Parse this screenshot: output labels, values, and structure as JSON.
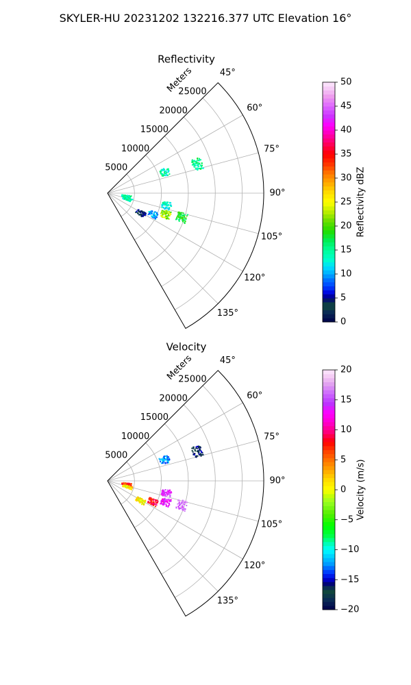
{
  "suptitle": "SKYLER-HU  20231202  132216.377 UTC Elevation 16°",
  "chart_data": [
    {
      "type": "polar-sector",
      "title": "Reflectivity",
      "range_label": "Meters",
      "range_ticks": [
        "5000",
        "10000",
        "15000",
        "20000",
        "25000"
      ],
      "range_max": 29000,
      "azimuth_range_deg": [
        45,
        150
      ],
      "azimuth_ticks": [
        "45°",
        "60°",
        "75°",
        "90°",
        "105°",
        "120°",
        "135°"
      ],
      "grid": true,
      "colorbar": {
        "label": "Reflectivity dBZ",
        "vmin": 0,
        "vmax": 50,
        "ticks": [
          "0",
          "5",
          "10",
          "15",
          "20",
          "25",
          "30",
          "35",
          "40",
          "45",
          "50"
        ]
      },
      "echoes": [
        {
          "range_m": 3600,
          "azimuth_deg": 100,
          "value": 15
        },
        {
          "range_m": 3900,
          "azimuth_deg": 107,
          "value": 14
        },
        {
          "range_m": 7200,
          "azimuth_deg": 121,
          "value": 4
        },
        {
          "range_m": 9300,
          "azimuth_deg": 115,
          "value": 10
        },
        {
          "range_m": 11500,
          "azimuth_deg": 110,
          "value": 22
        },
        {
          "range_m": 11200,
          "azimuth_deg": 102,
          "value": 13
        },
        {
          "range_m": 14500,
          "azimuth_deg": 108,
          "value": 18
        },
        {
          "range_m": 11300,
          "azimuth_deg": 70,
          "value": 14
        },
        {
          "range_m": 17500,
          "azimuth_deg": 72,
          "value": 15
        }
      ]
    },
    {
      "type": "polar-sector",
      "title": "Velocity",
      "range_label": "Meters",
      "range_ticks": [
        "5000",
        "10000",
        "15000",
        "20000",
        "25000"
      ],
      "range_max": 29000,
      "azimuth_range_deg": [
        45,
        150
      ],
      "azimuth_ticks": [
        "45°",
        "60°",
        "75°",
        "90°",
        "105°",
        "120°",
        "135°"
      ],
      "grid": true,
      "colorbar": {
        "label": "Velocity (m/s)",
        "vmin": -20,
        "vmax": 20,
        "ticks": [
          "−20",
          "−15",
          "−10",
          "−5",
          "0",
          "5",
          "10",
          "15",
          "20"
        ]
      },
      "echoes": [
        {
          "range_m": 3600,
          "azimuth_deg": 100,
          "value": 7
        },
        {
          "range_m": 3900,
          "azimuth_deg": 107,
          "value": 1
        },
        {
          "range_m": 7200,
          "azimuth_deg": 121,
          "value": 1
        },
        {
          "range_m": 9300,
          "azimuth_deg": 115,
          "value": 8
        },
        {
          "range_m": 11500,
          "azimuth_deg": 110,
          "value": 13
        },
        {
          "range_m": 11200,
          "azimuth_deg": 102,
          "value": 14
        },
        {
          "range_m": 14500,
          "azimuth_deg": 108,
          "value": 16
        },
        {
          "range_m": 11300,
          "azimuth_deg": 70,
          "value": -12
        },
        {
          "range_m": 17500,
          "azimuth_deg": 72,
          "value": -17
        }
      ]
    }
  ]
}
